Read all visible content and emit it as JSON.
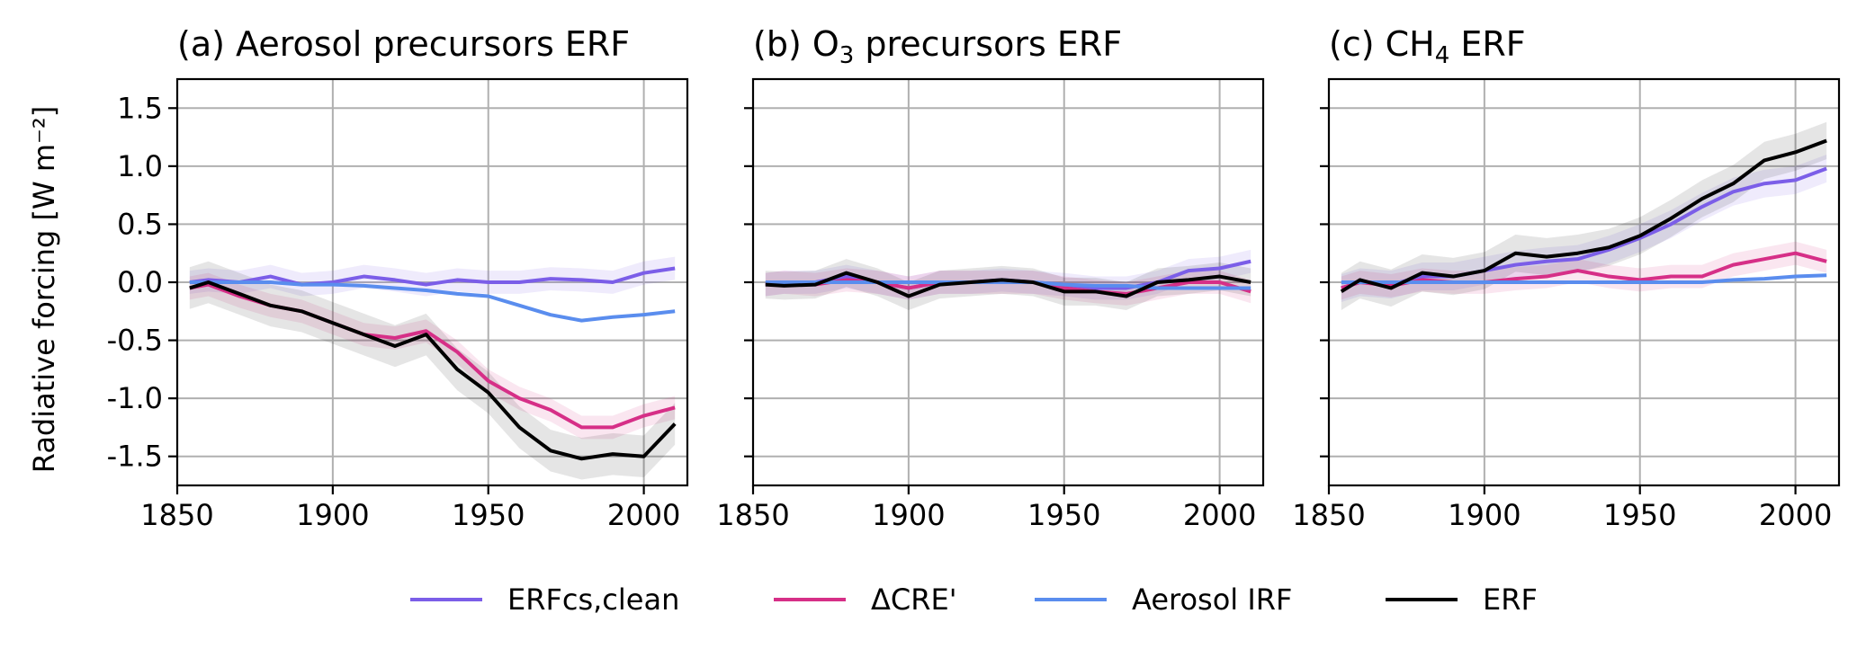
{
  "figure": {
    "ylabel": "Radiative forcing [W m⁻²]",
    "legend": [
      "ERFcs,clean",
      "ΔCRE'",
      "Aerosol IRF",
      "ERF"
    ]
  },
  "chart_data": [
    {
      "type": "line",
      "title": "(a) Aerosol precursors ERF",
      "title_parts": [
        "(a) Aerosol precursors ERF"
      ],
      "xlabel": "",
      "ylabel": "Radiative forcing [W m⁻²]",
      "xlim": [
        1850,
        2014
      ],
      "ylim": [
        -1.75,
        1.75
      ],
      "xticks": [
        1850,
        1900,
        1950,
        2000
      ],
      "yticks": [
        -1.5,
        -1.0,
        -0.5,
        0.0,
        0.5,
        1.0,
        1.5
      ],
      "ytick_labels": [
        "-1.5",
        "-1.0",
        "-0.5",
        "0.0",
        "0.5",
        "1.0",
        "1.5"
      ],
      "grid": true,
      "x": [
        1854,
        1860,
        1870,
        1880,
        1890,
        1900,
        1910,
        1920,
        1930,
        1940,
        1950,
        1960,
        1970,
        1980,
        1990,
        2000,
        2010
      ],
      "series": [
        {
          "name": "ERFcs,clean",
          "color": "#7b5ee8",
          "values": [
            0.0,
            0.02,
            0.0,
            0.05,
            -0.02,
            0.0,
            0.05,
            0.02,
            -0.02,
            0.02,
            0.0,
            0.0,
            0.03,
            0.02,
            0.0,
            0.08,
            0.12
          ],
          "band": 0.1
        },
        {
          "name": "ΔCRE'",
          "color": "#d62f87",
          "values": [
            -0.05,
            -0.02,
            -0.12,
            -0.2,
            -0.25,
            -0.35,
            -0.45,
            -0.48,
            -0.42,
            -0.6,
            -0.85,
            -1.0,
            -1.1,
            -1.25,
            -1.25,
            -1.15,
            -1.08
          ],
          "band": 0.1
        },
        {
          "name": "Aerosol IRF",
          "color": "#5a8dee",
          "values": [
            0.0,
            0.0,
            0.0,
            0.0,
            -0.02,
            -0.02,
            -0.03,
            -0.05,
            -0.07,
            -0.1,
            -0.12,
            -0.2,
            -0.28,
            -0.33,
            -0.3,
            -0.28,
            -0.25
          ],
          "band": 0.0
        },
        {
          "name": "ERF",
          "color": "#000000",
          "values": [
            -0.05,
            0.0,
            -0.1,
            -0.2,
            -0.25,
            -0.35,
            -0.45,
            -0.55,
            -0.45,
            -0.75,
            -0.95,
            -1.25,
            -1.45,
            -1.52,
            -1.48,
            -1.5,
            -1.22
          ],
          "band": 0.18
        }
      ]
    },
    {
      "type": "line",
      "title": "(b) O₃ precursors ERF",
      "title_parts": [
        "(b) O",
        "3",
        " precursors ERF"
      ],
      "xlabel": "",
      "ylabel": "",
      "xlim": [
        1850,
        2014
      ],
      "ylim": [
        -1.75,
        1.75
      ],
      "xticks": [
        1850,
        1900,
        1950,
        2000
      ],
      "yticks": [
        -1.5,
        -1.0,
        -0.5,
        0.0,
        0.5,
        1.0,
        1.5
      ],
      "ytick_labels": [],
      "grid": true,
      "x": [
        1854,
        1860,
        1870,
        1880,
        1890,
        1900,
        1910,
        1920,
        1930,
        1940,
        1950,
        1960,
        1970,
        1980,
        1990,
        2000,
        2010
      ],
      "series": [
        {
          "name": "ERFcs,clean",
          "color": "#7b5ee8",
          "values": [
            -0.02,
            0.0,
            0.0,
            0.05,
            0.0,
            -0.05,
            0.0,
            0.0,
            0.02,
            0.0,
            -0.02,
            -0.05,
            -0.05,
            0.0,
            0.1,
            0.12,
            0.18
          ],
          "band": 0.1
        },
        {
          "name": "ΔCRE'",
          "color": "#d62f87",
          "values": [
            -0.02,
            0.0,
            -0.02,
            0.02,
            0.0,
            -0.05,
            0.0,
            0.0,
            0.0,
            0.0,
            -0.05,
            -0.08,
            -0.1,
            -0.05,
            0.0,
            0.0,
            -0.08
          ],
          "band": 0.1
        },
        {
          "name": "Aerosol IRF",
          "color": "#5a8dee",
          "values": [
            0.0,
            0.0,
            0.0,
            0.0,
            0.0,
            0.0,
            0.0,
            0.0,
            0.0,
            0.0,
            -0.02,
            -0.03,
            -0.03,
            -0.05,
            -0.05,
            -0.05,
            -0.05
          ],
          "band": 0.0
        },
        {
          "name": "ERF",
          "color": "#000000",
          "values": [
            -0.02,
            -0.03,
            -0.02,
            0.08,
            0.0,
            -0.12,
            -0.02,
            0.0,
            0.02,
            0.0,
            -0.08,
            -0.08,
            -0.12,
            0.0,
            0.02,
            0.05,
            0.0
          ],
          "band": 0.12
        }
      ]
    },
    {
      "type": "line",
      "title": "(c) CH₄ ERF",
      "title_parts": [
        "(c) CH",
        "4",
        " ERF"
      ],
      "xlabel": "",
      "ylabel": "",
      "xlim": [
        1850,
        2014
      ],
      "ylim": [
        -1.75,
        1.75
      ],
      "xticks": [
        1850,
        1900,
        1950,
        2000
      ],
      "yticks": [
        -1.5,
        -1.0,
        -0.5,
        0.0,
        0.5,
        1.0,
        1.5
      ],
      "ytick_labels": [],
      "grid": true,
      "x": [
        1854,
        1860,
        1870,
        1880,
        1890,
        1900,
        1910,
        1920,
        1930,
        1940,
        1950,
        1960,
        1970,
        1980,
        1990,
        2000,
        2010
      ],
      "series": [
        {
          "name": "ERFcs,clean",
          "color": "#7b5ee8",
          "values": [
            -0.05,
            0.0,
            -0.02,
            0.05,
            0.05,
            0.1,
            0.15,
            0.18,
            0.2,
            0.28,
            0.38,
            0.5,
            0.65,
            0.78,
            0.85,
            0.88,
            0.98
          ],
          "band": 0.12
        },
        {
          "name": "ΔCRE'",
          "color": "#d62f87",
          "values": [
            -0.05,
            0.0,
            -0.03,
            0.02,
            0.0,
            0.0,
            0.03,
            0.05,
            0.1,
            0.05,
            0.02,
            0.05,
            0.05,
            0.15,
            0.2,
            0.25,
            0.18
          ],
          "band": 0.1
        },
        {
          "name": "Aerosol IRF",
          "color": "#5a8dee",
          "values": [
            0.0,
            0.0,
            0.0,
            0.0,
            0.0,
            0.0,
            0.0,
            0.0,
            0.0,
            0.0,
            0.0,
            0.0,
            0.0,
            0.02,
            0.03,
            0.05,
            0.06
          ],
          "band": 0.0
        },
        {
          "name": "ERF",
          "color": "#000000",
          "values": [
            -0.08,
            0.02,
            -0.05,
            0.08,
            0.05,
            0.1,
            0.25,
            0.22,
            0.25,
            0.3,
            0.4,
            0.55,
            0.72,
            0.85,
            1.05,
            1.12,
            1.22
          ],
          "band": 0.16
        }
      ]
    }
  ]
}
